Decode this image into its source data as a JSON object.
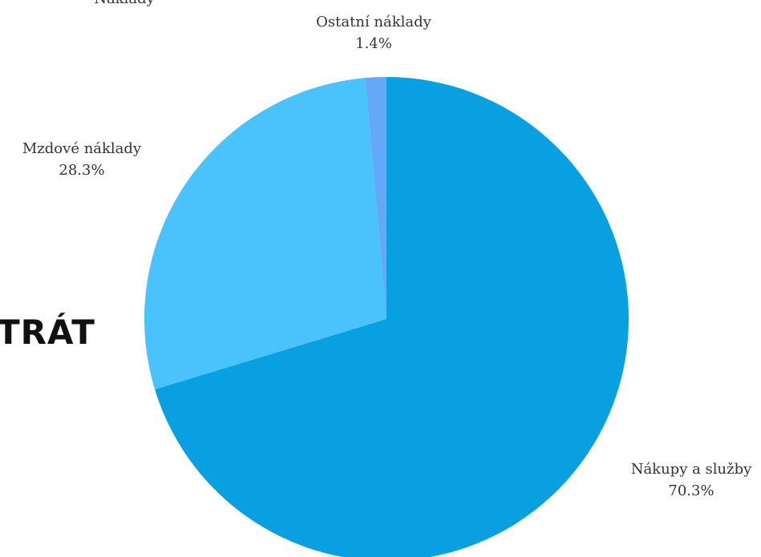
{
  "heading": "TRÁT",
  "top_cut_label": "Náklady",
  "chart_data": {
    "type": "pie",
    "categories": [
      "Nákupy a služby",
      "Mzdové náklady",
      "Ostatní náklady"
    ],
    "values": [
      70.3,
      28.3,
      1.4
    ],
    "value_labels": [
      "70.3%",
      "28.3%",
      "1.4%"
    ],
    "colors": [
      "#08a0e0",
      "#4ac3fc",
      "#66a8f8"
    ]
  }
}
